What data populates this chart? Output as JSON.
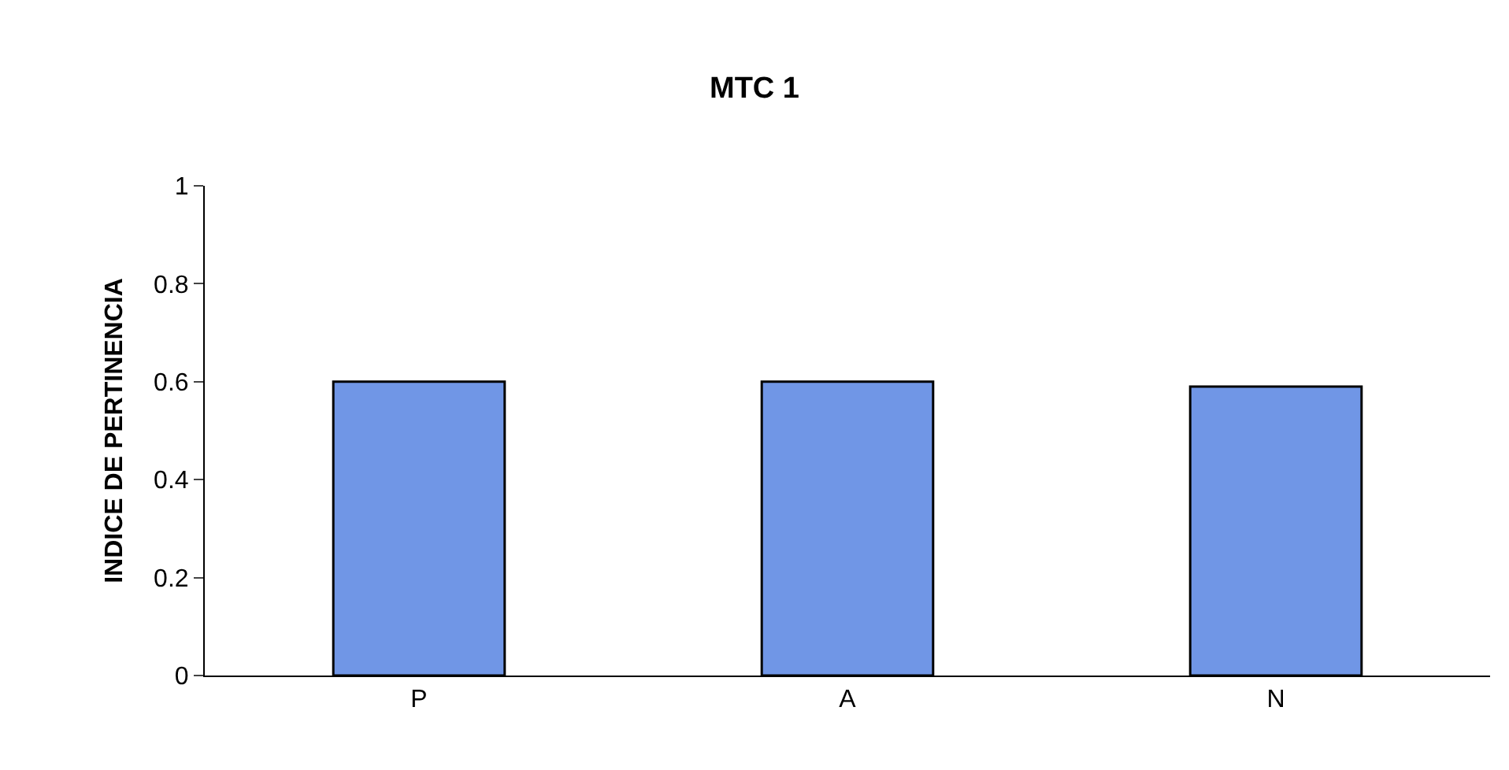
{
  "chart_data": {
    "type": "bar",
    "title": "MTC 1",
    "ylabel": "INDICE DE PERTINENCIA",
    "categories": [
      "P",
      "A",
      "N"
    ],
    "values": [
      0.6,
      0.6,
      0.59
    ],
    "color": "#7096e6",
    "ylim": [
      0,
      1
    ],
    "yticks": [
      0,
      0.2,
      0.4,
      0.6,
      0.8,
      1
    ]
  }
}
